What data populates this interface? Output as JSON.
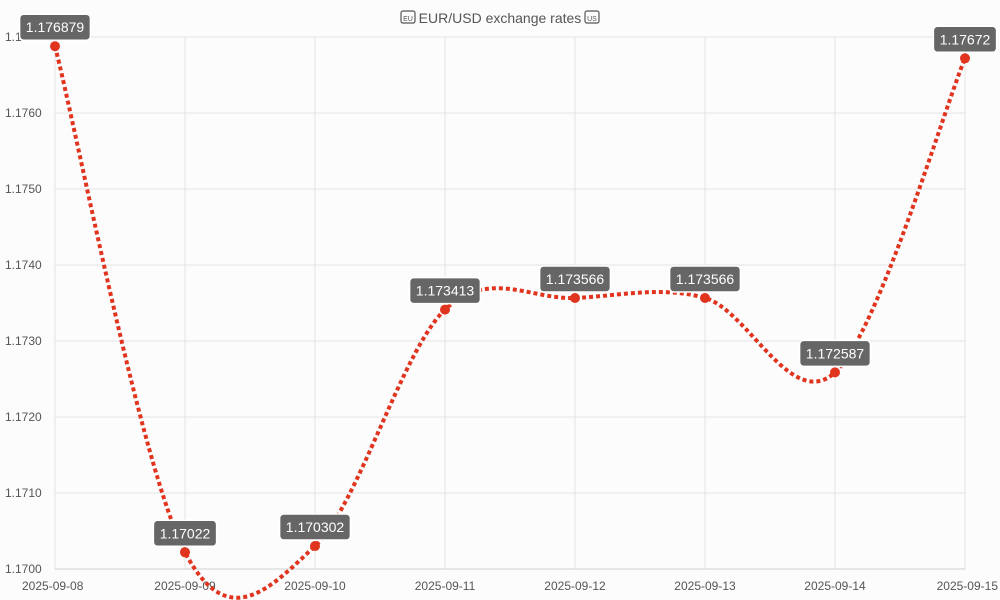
{
  "chart_data": {
    "type": "line",
    "title": "EUR/USD exchange rates",
    "title_icon_left": "eu-flag-icon",
    "title_icon_right": "us-flag-icon",
    "categories": [
      "2025-09-08",
      "2025-09-09",
      "2025-09-10",
      "2025-09-11",
      "2025-09-12",
      "2025-09-13",
      "2025-09-14",
      "2025-09-15"
    ],
    "series": [
      {
        "values": [
          1.176879,
          1.17022,
          1.170302,
          1.173413,
          1.173566,
          1.173566,
          1.172587,
          1.17672
        ],
        "point_labels": [
          "1.176879",
          "1.17022",
          "1.170302",
          "1.173413",
          "1.173566",
          "1.173566",
          "1.172587",
          "1.17672"
        ],
        "color": "#e0341e",
        "line_style": "dotted",
        "smooth": true
      }
    ],
    "ylim": [
      1.17,
      1.177
    ],
    "yticks": [
      "1.1700",
      "1.1710",
      "1.1720",
      "1.1730",
      "1.1740",
      "1.1750",
      "1.1760",
      "1.1770"
    ],
    "grid": true,
    "legend": "none"
  }
}
